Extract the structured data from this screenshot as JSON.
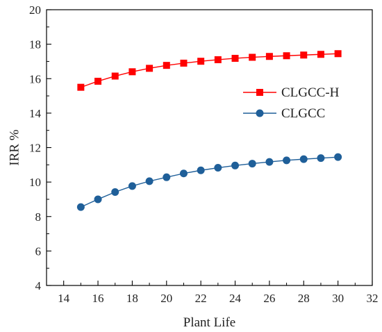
{
  "chart_data": {
    "type": "line",
    "title": "",
    "xlabel": "Plant Life",
    "ylabel": "IRR %",
    "xlim": [
      13,
      32
    ],
    "ylim": [
      4,
      20
    ],
    "xticks": [
      14,
      16,
      18,
      20,
      22,
      24,
      26,
      28,
      30,
      32
    ],
    "yticks": [
      4,
      6,
      8,
      10,
      12,
      14,
      16,
      18,
      20
    ],
    "grid": false,
    "legend_position": "right-middle",
    "x": [
      15,
      16,
      17,
      18,
      19,
      20,
      21,
      22,
      23,
      24,
      25,
      26,
      27,
      28,
      29,
      30
    ],
    "series": [
      {
        "name": "CLGCC-H",
        "color": "#ff0000",
        "marker": "square",
        "values": [
          15.5,
          15.85,
          16.15,
          16.4,
          16.6,
          16.77,
          16.9,
          17.01,
          17.1,
          17.18,
          17.24,
          17.29,
          17.33,
          17.37,
          17.41,
          17.45
        ]
      },
      {
        "name": "CLGCC",
        "color": "#1f5f99",
        "marker": "circle",
        "values": [
          8.55,
          9.0,
          9.42,
          9.77,
          10.05,
          10.28,
          10.5,
          10.68,
          10.83,
          10.96,
          11.07,
          11.17,
          11.26,
          11.33,
          11.39,
          11.45
        ]
      }
    ]
  }
}
